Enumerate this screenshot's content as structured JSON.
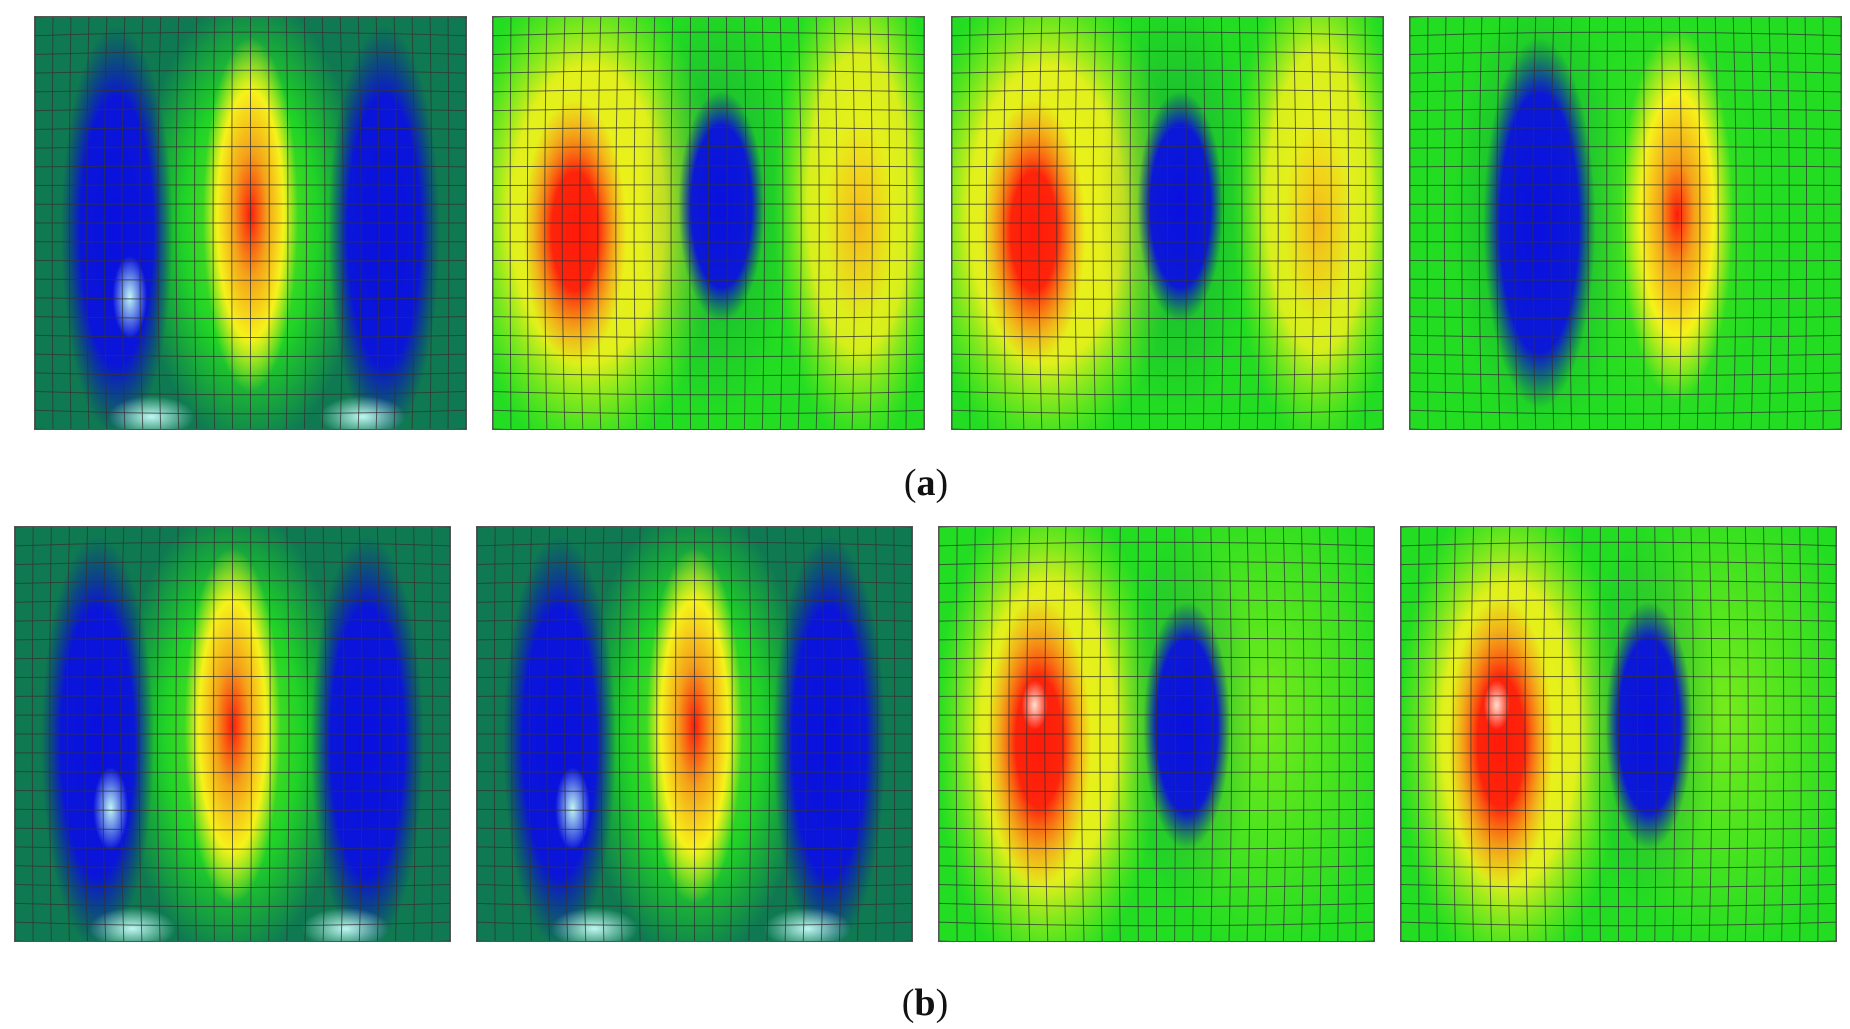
{
  "rows": [
    {
      "label": "a",
      "panels": [
        {
          "id": "a1",
          "variant": "A",
          "flip": false
        },
        {
          "id": "a2",
          "variant": "B",
          "flip": false
        },
        {
          "id": "a3",
          "variant": "B",
          "flip": false
        },
        {
          "id": "a4",
          "variant": "C",
          "flip": false
        }
      ]
    },
    {
      "label": "b",
      "panels": [
        {
          "id": "b1",
          "variant": "A",
          "flip": false
        },
        {
          "id": "b2",
          "variant": "A",
          "flip": false
        },
        {
          "id": "b3",
          "variant": "D",
          "flip": false
        },
        {
          "id": "b4",
          "variant": "D",
          "flip": false
        }
      ]
    }
  ],
  "colors": {
    "dark_teal": "#0f7a52",
    "green": "#22dd22",
    "lime": "#8aef1a",
    "yellow": "#f6f21a",
    "orange": "#f5a01a",
    "red": "#ff1a0a",
    "blue": "#0a10e0",
    "dark_blue": "#0a1a8a",
    "cyan": "#bff7f2",
    "grid_line": "#333333"
  }
}
